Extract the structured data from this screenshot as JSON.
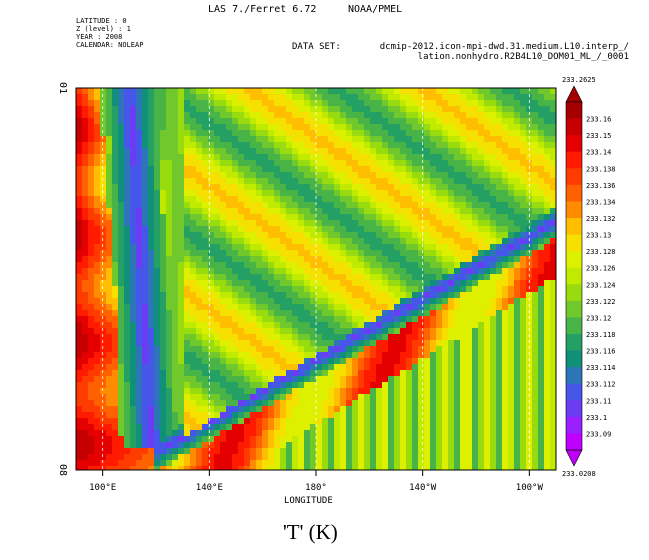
{
  "header": {
    "program": "LAS 7./Ferret 6.72",
    "org": "NOAA/PMEL",
    "meta": [
      "LATITUDE : 0",
      "Z (level) : 1",
      "YEAR : 2008",
      "CALENDAR: NOLEAP"
    ],
    "dataset_label": "DATA SET:",
    "dataset_line1": "dcmip-2012.icon-mpi-dwd.31.medium.L10.interp_/",
    "dataset_line2": "lation.nonhydro.R2B4L10_DOM01_ML_/_0001"
  },
  "chart_data": {
    "type": "heatmap",
    "title": "'T' (K)",
    "xlabel": "LONGITUDE",
    "ylabel": "",
    "x_ticks": [
      "100°E",
      "140°E",
      "180°",
      "140°W",
      "100°W"
    ],
    "x_tick_degrees": [
      100,
      140,
      180,
      220,
      260
    ],
    "xlim_degrees": [
      90,
      270
    ],
    "y_ticks": [
      "01",
      "08"
    ],
    "grid": "dashed vertical lines at longitude ticks",
    "colorbar": {
      "max_label": "233.2625",
      "min_label": "233.0208",
      "labels": [
        "233.16",
        "233.15",
        "233.14",
        "233.138",
        "233.136",
        "233.134",
        "233.132",
        "233.13",
        "233.128",
        "233.126",
        "233.124",
        "233.122",
        "233.12",
        "233.118",
        "233.116",
        "233.114",
        "233.112",
        "233.11",
        "233.1",
        "233.09"
      ],
      "colors": [
        "#a40000",
        "#c60000",
        "#e40000",
        "#ff1a00",
        "#ff3c00",
        "#ff6000",
        "#ff8c00",
        "#ffbe00",
        "#f6e000",
        "#dcf000",
        "#c0ea00",
        "#98dc10",
        "#70c82c",
        "#48b448",
        "#24a064",
        "#109078",
        "#2c76b8",
        "#4656e8",
        "#6a3cf4",
        "#9a20ff",
        "#c000ff"
      ]
    },
    "regions": {
      "background_value": 233.125,
      "warm_boundary_left_value": 233.145,
      "cold_vortex_value": 233.1,
      "vortex_origin": {
        "lon": 125,
        "time": "08"
      },
      "vortex_arm_upper_end": {
        "lon": 125,
        "time": "01"
      },
      "vortex_arm_lower_end": {
        "lon": 270,
        "time": "01"
      }
    }
  }
}
